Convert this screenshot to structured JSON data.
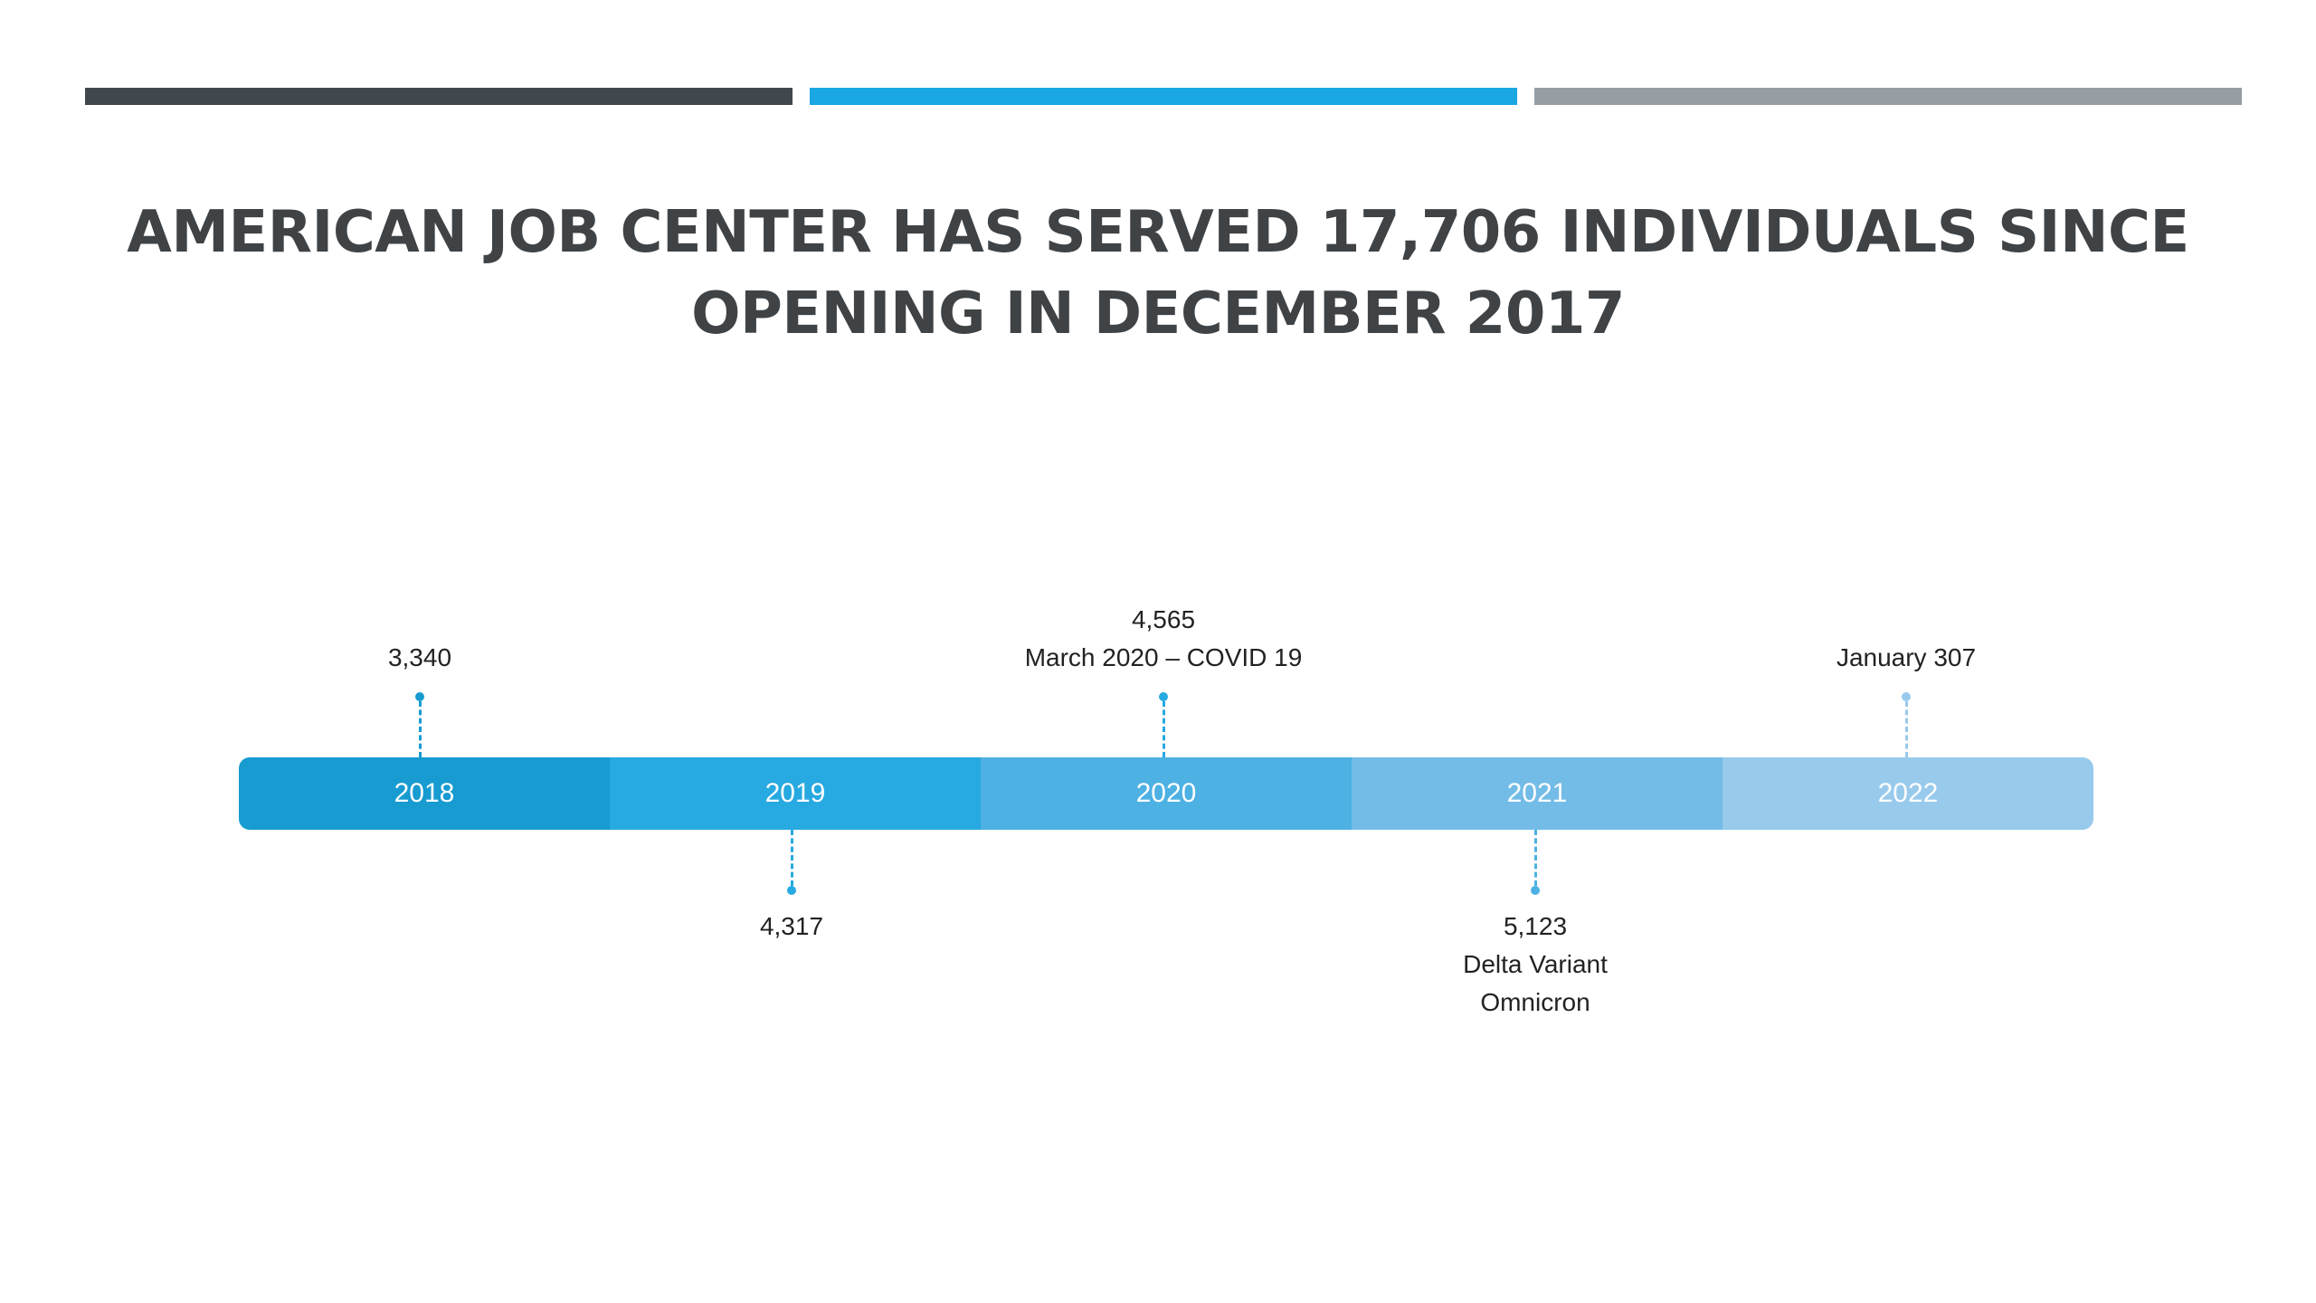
{
  "title": "AMERICAN JOB CENTER HAS SERVED 17,706 INDIVIDUALS SINCE OPENING IN DECEMBER 2017",
  "colors": {
    "bar_left": "#41484d",
    "bar_mid": "#1aa7e2",
    "bar_right": "#969ea4",
    "seg_2018": "#179bd0",
    "seg_2019": "#27a9e1",
    "seg_2020": "#4db1e3",
    "seg_2021": "#73bce7",
    "seg_2022": "#98caec",
    "annot_text": "#222222"
  },
  "timeline": {
    "segments": [
      "2018",
      "2019",
      "2020",
      "2021",
      "2022"
    ]
  },
  "annotations": {
    "y2018": {
      "lines": [
        "3,340"
      ]
    },
    "y2019": {
      "lines": [
        "4,317"
      ]
    },
    "y2020": {
      "lines": [
        "4,565",
        "March 2020 – COVID 19"
      ]
    },
    "y2021": {
      "lines": [
        "5,123",
        "Delta Variant",
        "Omnicron"
      ]
    },
    "y2022": {
      "lines": [
        "January 307"
      ]
    }
  }
}
